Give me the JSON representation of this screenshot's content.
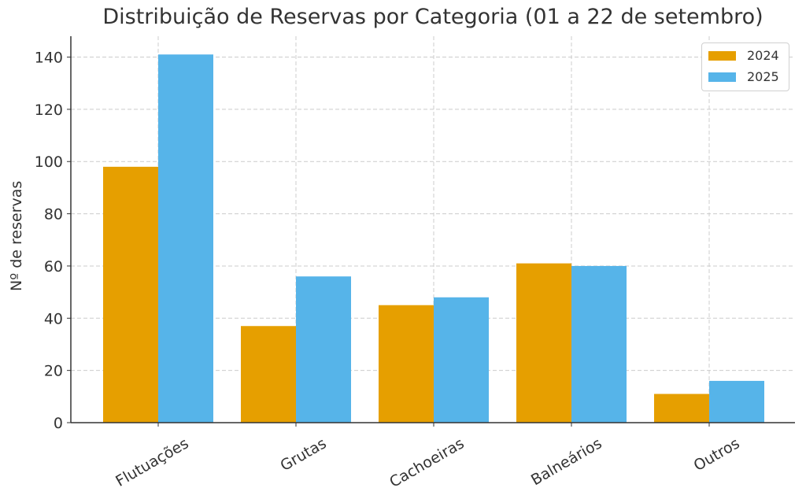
{
  "chart_data": {
    "type": "bar",
    "title": "Distribuição de Reservas por Categoria (01 a 22 de setembro)",
    "xlabel": "",
    "ylabel": "Nº de reservas",
    "categories": [
      "Flutuações",
      "Grutas",
      "Cachoeiras",
      "Balneários",
      "Outros"
    ],
    "series": [
      {
        "name": "2024",
        "color": "#E69F00",
        "values": [
          98,
          37,
          45,
          61,
          11
        ]
      },
      {
        "name": "2025",
        "color": "#56B4E9",
        "values": [
          141,
          56,
          48,
          60,
          16
        ]
      }
    ],
    "ylim": [
      0,
      148
    ],
    "yticks": [
      0,
      20,
      40,
      60,
      80,
      100,
      120,
      140
    ],
    "grid": true,
    "legend_position": "upper right"
  }
}
